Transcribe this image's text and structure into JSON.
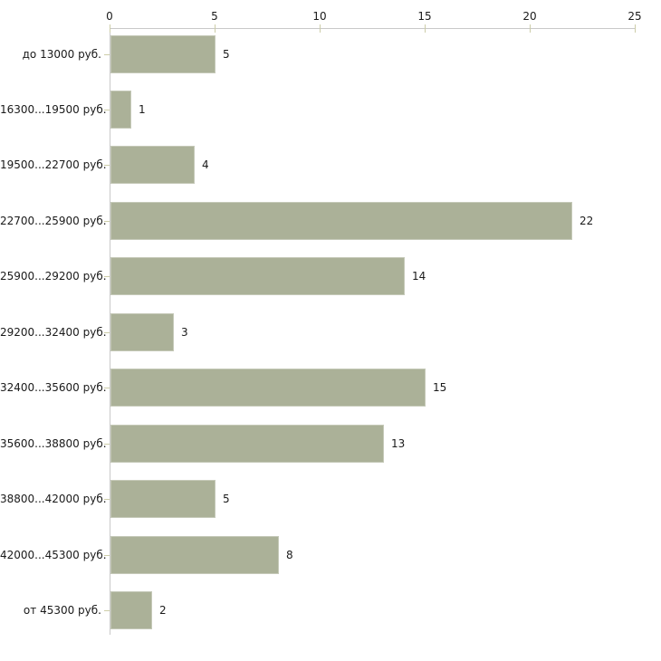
{
  "chart_data": {
    "type": "bar",
    "orientation": "horizontal",
    "title": "",
    "xlabel": "",
    "ylabel": "",
    "categories": [
      "до 13000 руб.",
      "16300...19500 руб.",
      "19500...22700 руб.",
      "22700...25900 руб.",
      "25900...29200 руб.",
      "29200...32400 руб.",
      "32400...35600 руб.",
      "35600...38800 руб.",
      "38800...42000 руб.",
      "42000...45300 руб.",
      "от 45300 руб."
    ],
    "values": [
      5,
      1,
      4,
      22,
      14,
      3,
      15,
      13,
      5,
      8,
      2
    ],
    "x_ticks": [
      0,
      5,
      10,
      15,
      20,
      25
    ],
    "xlim": [
      0,
      25
    ],
    "grid": false,
    "legend": false,
    "axis_position": "top",
    "colors": {
      "bar_fill": "#abb198",
      "bar_border": "#c5c9b8",
      "axis_line": "#c9c9c9",
      "tick_mark": "#cdcda8",
      "text": "#1a1a1a",
      "background": "#ffffff"
    }
  }
}
